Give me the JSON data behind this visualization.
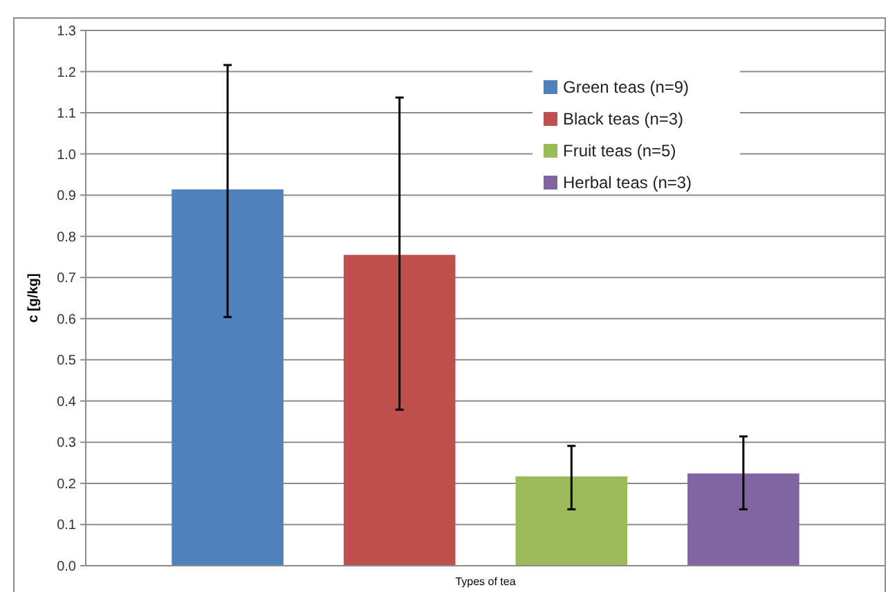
{
  "chart_data": {
    "type": "bar",
    "xlabel": "Types of tea",
    "ylabel": "c [g/kg]",
    "categories": [
      null
    ],
    "series": [
      {
        "name": "Green teas (n=9)",
        "color": "#4f81bd",
        "values": [
          0.914
        ],
        "errors": [
          [
            0.604,
            1.216
          ]
        ]
      },
      {
        "name": "Black teas (n=3)",
        "color": "#c0504d",
        "values": [
          0.755
        ],
        "errors": [
          [
            0.379,
            1.137
          ]
        ]
      },
      {
        "name": "Fruit teas (n=5)",
        "color": "#9bbb59",
        "values": [
          0.217
        ],
        "errors": [
          [
            0.137,
            0.291
          ]
        ]
      },
      {
        "name": "Herbal teas (n=3)",
        "color": "#8064a2",
        "values": [
          0.224
        ],
        "errors": [
          [
            0.137,
            0.314
          ]
        ]
      }
    ],
    "ylim": [
      0,
      1.3
    ],
    "yticks": [
      {
        "value": 0,
        "label": "0.0"
      },
      {
        "value": 0.1,
        "label": "0.1"
      },
      {
        "value": 0.2,
        "label": "0.2"
      },
      {
        "value": 0.3,
        "label": "0.3"
      },
      {
        "value": 0.4,
        "label": "0.4"
      },
      {
        "value": 0.5,
        "label": "0.5"
      },
      {
        "value": 0.6,
        "label": "0.6"
      },
      {
        "value": 0.7,
        "label": "0.7"
      },
      {
        "value": 0.8,
        "label": "0.8"
      },
      {
        "value": 0.9,
        "label": "0.9"
      },
      {
        "value": 1,
        "label": "1.0"
      },
      {
        "value": 1.1,
        "label": "1.1"
      },
      {
        "value": 1.2,
        "label": "1.2"
      },
      {
        "value": 1.3,
        "label": "1.3"
      }
    ],
    "grid": "y",
    "legend": "top right"
  }
}
